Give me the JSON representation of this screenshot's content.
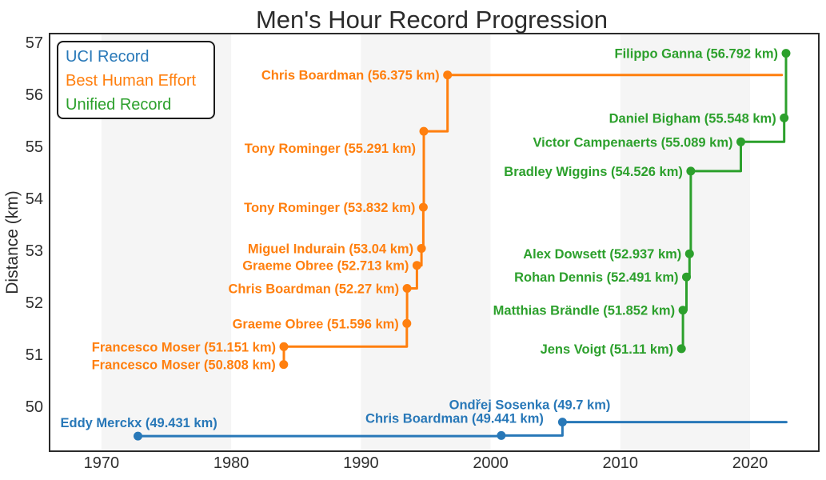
{
  "title": "Men's Hour Record Progression",
  "legend": {
    "items": [
      {
        "label": "UCI Record",
        "color": "#2878b8"
      },
      {
        "label": "Best Human Effort",
        "color": "#ff7f0e"
      },
      {
        "label": "Unified Record",
        "color": "#2ca02c"
      }
    ]
  },
  "chart_data": {
    "type": "line",
    "step": "post",
    "title": "Men's Hour Record Progression",
    "xlabel": "",
    "ylabel": "Distance (km)",
    "xlim": [
      1966.0,
      2025.3
    ],
    "ylim": [
      49.14,
      57.17
    ],
    "xticks": [
      1970,
      1980,
      1990,
      2000,
      2010,
      2020
    ],
    "yticks": [
      50,
      51,
      52,
      53,
      54,
      55,
      56,
      57
    ],
    "grid": false,
    "legend_position": "upper left",
    "decade_bands": [
      [
        1970,
        1980
      ],
      [
        1990,
        2000
      ],
      [
        2010,
        2020
      ]
    ],
    "band_color": "#f5f5f5",
    "series": [
      {
        "name": "UCI Record",
        "color": "#2878b8",
        "end_year": 2022.8,
        "points": [
          {
            "rider": "Eddy Merckx",
            "km": 49.431,
            "year": 1972.81,
            "label": "Eddy Merckx (49.431 km)",
            "anchor": "start",
            "dx": -97,
            "dy": -11
          },
          {
            "rider": "Chris Boardman",
            "km": 49.441,
            "year": 2000.82,
            "label": "Chris Boardman (49.441 km)",
            "dx": 53,
            "dy": -16
          },
          {
            "rider": "Ondřej Sosenka",
            "km": 49.7,
            "year": 2005.54,
            "label": "Ondřej Sosenka (49.7 km)",
            "dx": 60,
            "dy": -16
          }
        ]
      },
      {
        "name": "Best Human Effort",
        "color": "#ff7f0e",
        "end_year": 2022.45,
        "points": [
          {
            "rider": "Francesco Moser",
            "km": 50.808,
            "year": 1984.05,
            "label": "Francesco Moser (50.808 km)"
          },
          {
            "rider": "Francesco Moser",
            "km": 51.151,
            "year": 1984.06,
            "label": "Francesco Moser (51.151 km)"
          },
          {
            "rider": "Graeme Obree",
            "km": 51.596,
            "year": 1993.54,
            "label": "Graeme Obree (51.596 km)"
          },
          {
            "rider": "Chris Boardman",
            "km": 52.27,
            "year": 1993.56,
            "label": "Chris Boardman (52.27 km)"
          },
          {
            "rider": "Graeme Obree",
            "km": 52.713,
            "year": 1994.32,
            "label": "Graeme Obree (52.713 km)"
          },
          {
            "rider": "Miguel Indurain",
            "km": 53.04,
            "year": 1994.67,
            "label": "Miguel Indurain (53.04 km)"
          },
          {
            "rider": "Tony Rominger",
            "km": 53.832,
            "year": 1994.81,
            "label": "Tony Rominger (53.832 km)"
          },
          {
            "rider": "Tony Rominger",
            "km": 55.291,
            "year": 1994.85,
            "label": "Tony Rominger (55.291 km)",
            "dy": 27
          },
          {
            "rider": "Chris Boardman",
            "km": 56.375,
            "year": 1996.68,
            "label": "Chris Boardman (56.375 km)"
          }
        ]
      },
      {
        "name": "Unified Record",
        "color": "#2ca02c",
        "end_year": null,
        "points": [
          {
            "rider": "Jens Voigt",
            "km": 51.11,
            "year": 2014.71,
            "label": "Jens Voigt (51.11 km)"
          },
          {
            "rider": "Matthias Brändle",
            "km": 51.852,
            "year": 2014.83,
            "label": "Matthias Brändle (51.852 km)"
          },
          {
            "rider": "Rohan Dennis",
            "km": 52.491,
            "year": 2015.1,
            "label": "Rohan Dennis (52.491 km)"
          },
          {
            "rider": "Alex Dowsett",
            "km": 52.937,
            "year": 2015.33,
            "label": "Alex Dowsett (52.937 km)"
          },
          {
            "rider": "Bradley Wiggins",
            "km": 54.526,
            "year": 2015.43,
            "label": "Bradley Wiggins (54.526 km)"
          },
          {
            "rider": "Victor Campenaerts",
            "km": 55.089,
            "year": 2019.29,
            "label": "Victor Campenaerts (55.089 km)"
          },
          {
            "rider": "Daniel Bigham",
            "km": 55.548,
            "year": 2022.63,
            "label": "Daniel Bigham (55.548 km)"
          },
          {
            "rider": "Filippo Ganna",
            "km": 56.792,
            "year": 2022.77,
            "label": "Filippo Ganna (56.792 km)"
          }
        ]
      }
    ]
  }
}
